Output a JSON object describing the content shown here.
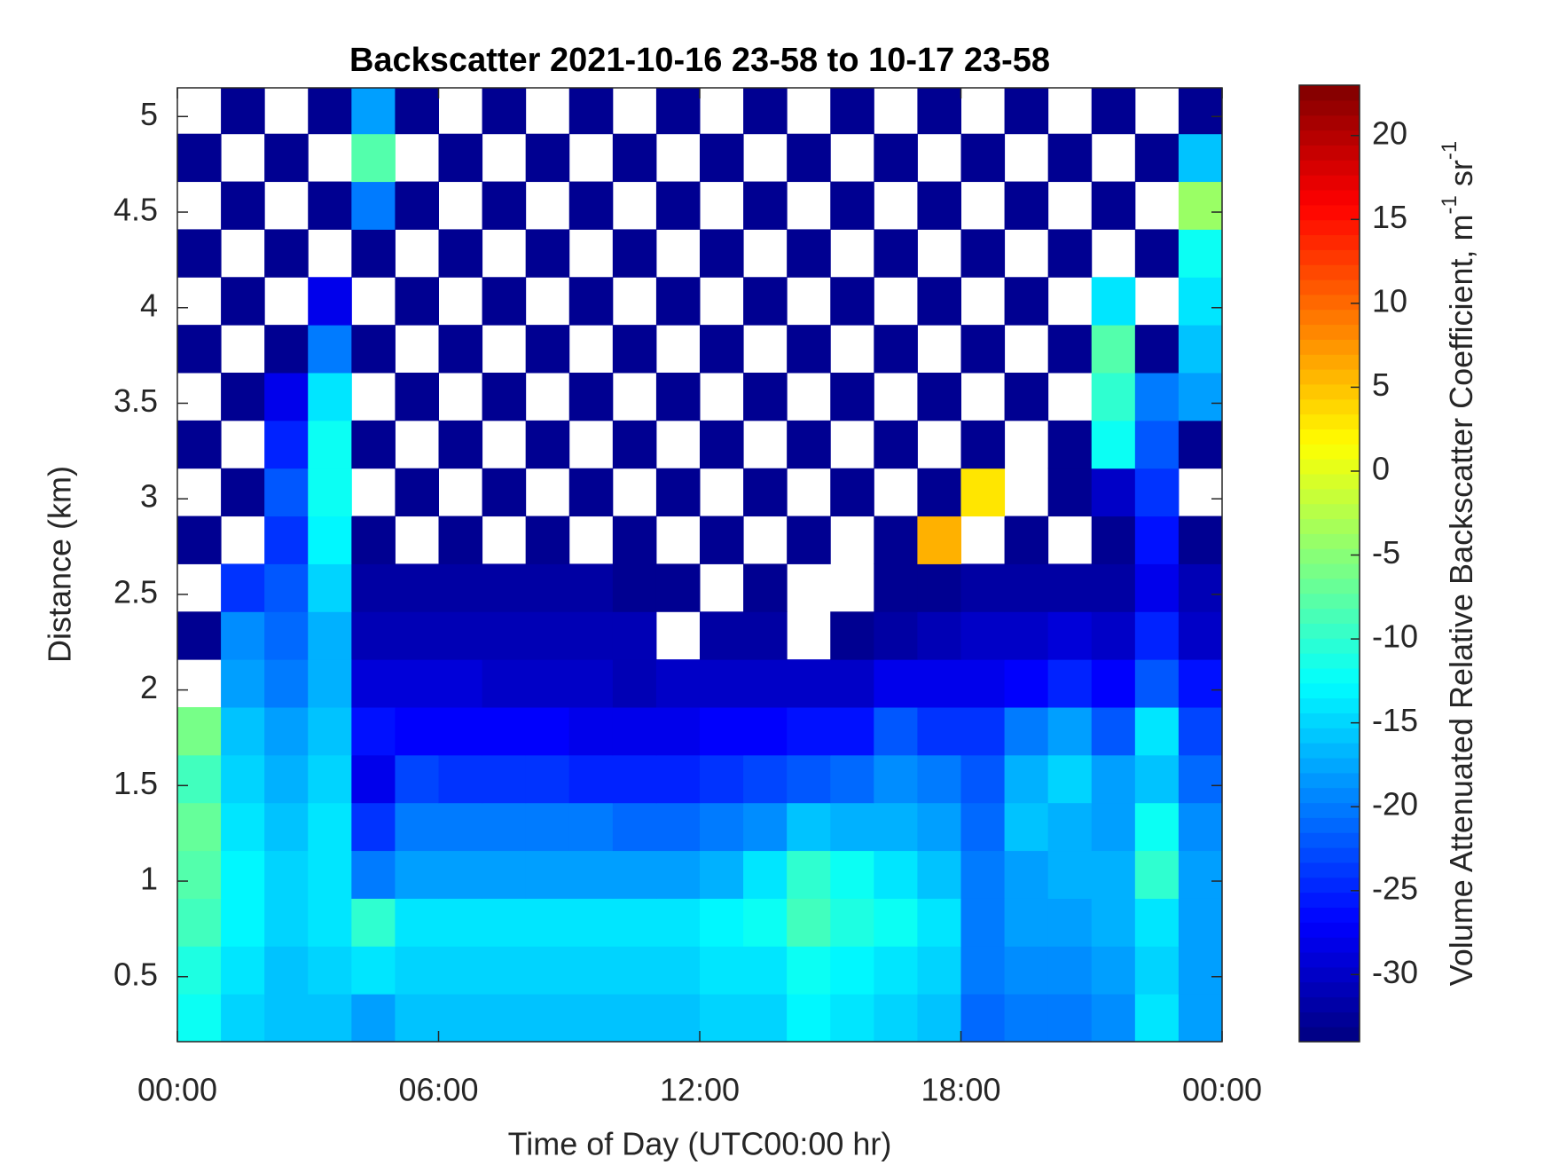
{
  "chart_data": {
    "type": "heatmap",
    "title": "Backscatter 2021-10-16 23-58 to 10-17 23-58",
    "xlabel": "Time of Day (UTC00:00 hr)",
    "ylabel": "Distance (km)",
    "colorbar_label": [
      "Volume Attenuated Relative Backscatter Coefficient, m",
      "-1",
      " sr",
      "-1"
    ],
    "colormap": "jet",
    "x": [
      0.5,
      1.5,
      2.5,
      3.5,
      4.5,
      5.5,
      6.5,
      7.5,
      8.5,
      9.5,
      10.5,
      11.5,
      12.5,
      13.5,
      14.5,
      15.5,
      16.5,
      17.5,
      18.5,
      19.5,
      20.5,
      21.5,
      22.5,
      23.5
    ],
    "y": [
      0.285,
      0.535,
      0.785,
      1.035,
      1.285,
      1.535,
      1.785,
      2.035,
      2.285,
      2.535,
      2.785,
      3.035,
      3.285,
      3.535,
      3.785,
      4.035,
      4.285,
      4.535,
      4.785,
      5.035
    ],
    "z": [
      [
        -12,
        -15,
        -16,
        -16,
        -18,
        -16,
        -16,
        -16,
        -16,
        -16,
        -16,
        -16,
        -15,
        -15,
        -13,
        -14,
        -15,
        -16,
        -21,
        -20,
        -20,
        -19,
        -14,
        -18
      ],
      [
        -11,
        -14,
        -16,
        -15,
        -14,
        -15,
        -15,
        -15,
        -15,
        -15,
        -15,
        -15,
        -14,
        -14,
        -12,
        -13,
        -14,
        -15,
        -20,
        -19,
        -19,
        -18,
        -15,
        -18
      ],
      [
        -9,
        -13,
        -15,
        -14,
        -10,
        -14,
        -14,
        -14,
        -14,
        -14,
        -14,
        -14,
        -13,
        -12,
        -9,
        -11,
        -12,
        -14,
        -20,
        -18,
        -18,
        -17,
        -14,
        -18
      ],
      [
        -8,
        -13,
        -15,
        -14,
        -20,
        -18,
        -18,
        -18,
        -18,
        -18,
        -18,
        -18,
        -17,
        -14,
        -10,
        -12,
        -14,
        -16,
        -20,
        -18,
        -17,
        -17,
        -10,
        -18
      ],
      [
        -7,
        -14,
        -16,
        -14,
        -24,
        -20,
        -20,
        -20,
        -20,
        -20,
        -21,
        -21,
        -20,
        -19,
        -16,
        -17,
        -17,
        -18,
        -21,
        -16,
        -17,
        -18,
        -12,
        -19
      ],
      [
        -9,
        -15,
        -17,
        -15,
        -28,
        -23,
        -24,
        -24,
        -24,
        -25,
        -25,
        -25,
        -24,
        -23,
        -22,
        -21,
        -19,
        -20,
        -22,
        -17,
        -15,
        -18,
        -16,
        -21
      ],
      [
        -6,
        -16,
        -18,
        -16,
        -26,
        -27,
        -27,
        -27,
        -27,
        -28,
        -28,
        -28,
        -27,
        -27,
        -26,
        -26,
        -22,
        -24,
        -24,
        -20,
        -18,
        -22,
        -14,
        -23
      ],
      [
        null,
        -18,
        -20,
        -17,
        -29,
        -29,
        -29,
        -30,
        -30,
        -30,
        -31,
        -30,
        -30,
        -30,
        -30,
        -30,
        -28,
        -28,
        -28,
        -27,
        -25,
        -27,
        -22,
        -26
      ],
      [
        -33,
        -19,
        -21,
        -17,
        -31,
        -31,
        -31,
        -31,
        -31,
        -31,
        -31,
        null,
        -32,
        -32,
        null,
        -33,
        -32,
        -31,
        -30,
        -30,
        -29,
        -30,
        -25,
        -30
      ],
      [
        null,
        -24,
        -22,
        -15,
        -32,
        -32,
        -32,
        -32,
        -32,
        -32,
        -33,
        -33,
        null,
        -33,
        null,
        null,
        -33,
        -33,
        -32,
        -32,
        -32,
        -32,
        -28,
        -31
      ],
      [
        -33,
        null,
        -24,
        -13,
        -33,
        null,
        -33,
        null,
        -33,
        null,
        -33,
        null,
        -33,
        null,
        -33,
        null,
        -33,
        6,
        null,
        -33,
        null,
        -33,
        -26,
        -33
      ],
      [
        null,
        -33,
        -22,
        -12,
        null,
        -33,
        null,
        -33,
        null,
        -33,
        null,
        -33,
        null,
        -33,
        null,
        -33,
        null,
        -33,
        3,
        null,
        -33,
        -30,
        -24,
        null
      ],
      [
        -33,
        null,
        -25,
        -12,
        -33,
        null,
        -33,
        null,
        -33,
        null,
        -33,
        null,
        -33,
        null,
        -33,
        null,
        -33,
        null,
        -33,
        null,
        -33,
        -12,
        -22,
        -33
      ],
      [
        null,
        -33,
        -28,
        -14,
        null,
        -33,
        null,
        -33,
        null,
        -33,
        null,
        -33,
        null,
        -33,
        null,
        -33,
        null,
        -33,
        null,
        -33,
        null,
        -10,
        -20,
        -18
      ],
      [
        -33,
        null,
        -33,
        -20,
        -33,
        null,
        -33,
        null,
        -33,
        null,
        -33,
        null,
        -33,
        null,
        -33,
        null,
        -33,
        null,
        -33,
        null,
        -33,
        -8,
        -33,
        -16
      ],
      [
        null,
        -33,
        null,
        -28,
        null,
        -33,
        null,
        -33,
        null,
        -33,
        null,
        -33,
        null,
        -33,
        null,
        -33,
        null,
        -33,
        null,
        -33,
        null,
        -14,
        null,
        -14
      ],
      [
        -33,
        null,
        -33,
        null,
        -33,
        null,
        -33,
        null,
        -33,
        null,
        -33,
        null,
        -33,
        null,
        -33,
        null,
        -33,
        null,
        -33,
        null,
        -33,
        null,
        -33,
        -12
      ],
      [
        null,
        -33,
        null,
        -33,
        -20,
        -33,
        null,
        -33,
        null,
        -33,
        null,
        -33,
        null,
        -33,
        null,
        -33,
        null,
        -33,
        null,
        -33,
        null,
        -33,
        null,
        -4
      ],
      [
        -33,
        null,
        -33,
        null,
        -8,
        null,
        -33,
        null,
        -33,
        null,
        -33,
        null,
        -33,
        null,
        -33,
        null,
        -33,
        null,
        -33,
        null,
        -33,
        null,
        -33,
        -16
      ],
      [
        null,
        -33,
        null,
        -33,
        -18,
        -33,
        null,
        -33,
        null,
        -33,
        null,
        -33,
        null,
        -33,
        null,
        -33,
        null,
        -33,
        null,
        -33,
        null,
        -33,
        null,
        -33
      ]
    ],
    "xlim": [
      0,
      24
    ],
    "xticks": [
      {
        "value": 0,
        "label": "00:00"
      },
      {
        "value": 6,
        "label": "06:00"
      },
      {
        "value": 12,
        "label": "12:00"
      },
      {
        "value": 18,
        "label": "18:00"
      },
      {
        "value": 24,
        "label": "00:00"
      }
    ],
    "ylim": [
      0.16,
      5.15
    ],
    "yticks": [
      0.5,
      1,
      1.5,
      2,
      2.5,
      3,
      3.5,
      4,
      4.5,
      5
    ],
    "clim": [
      -34,
      23
    ],
    "cticks": [
      -30,
      -25,
      -20,
      -15,
      -10,
      -5,
      0,
      5,
      10,
      15,
      20
    ]
  }
}
